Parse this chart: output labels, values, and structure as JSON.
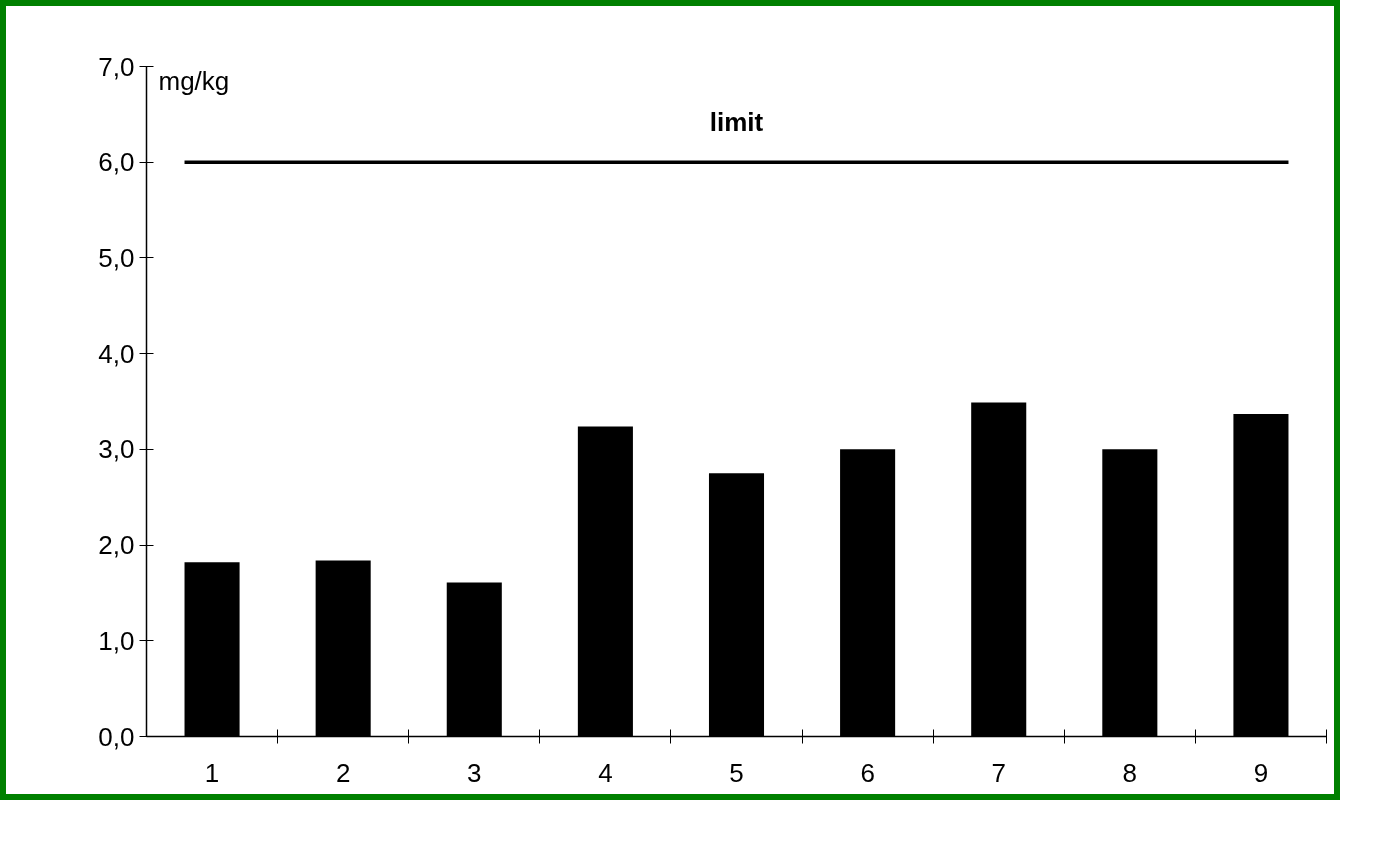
{
  "chart_data": {
    "type": "bar",
    "ylabel": "mg/kg",
    "categories": [
      "1",
      "2",
      "3",
      "4",
      "5",
      "6",
      "7",
      "8",
      "9"
    ],
    "series": [
      {
        "color": "#000000",
        "values": [
          1.82,
          1.84,
          1.61,
          3.24,
          2.75,
          3.0,
          3.49,
          3.0,
          3.37
        ]
      }
    ],
    "ylim": [
      0,
      7
    ],
    "yticks": [
      {
        "value": 0,
        "label": "0,0"
      },
      {
        "value": 1,
        "label": "1,0"
      },
      {
        "value": 2,
        "label": "2,0"
      },
      {
        "value": 3,
        "label": "3,0"
      },
      {
        "value": 4,
        "label": "4,0"
      },
      {
        "value": 5,
        "label": "5,0"
      },
      {
        "value": 6,
        "label": "6,0"
      },
      {
        "value": 7,
        "label": "7,0"
      }
    ],
    "ref_lines": [
      {
        "axis": "y",
        "value": 6.0,
        "label": "limit",
        "color": "#000000"
      }
    ],
    "grid": false
  }
}
